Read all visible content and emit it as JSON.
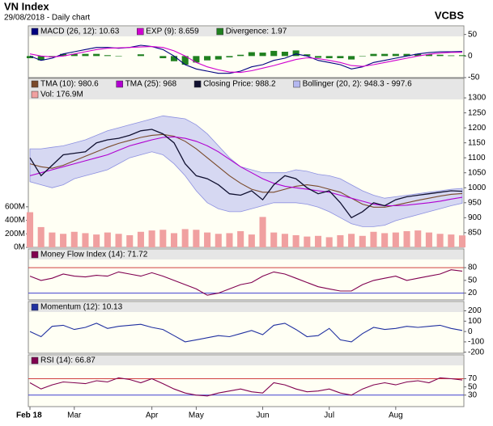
{
  "header": {
    "title": "VN Index",
    "subtitle": "29/08/2018 - Daily chart",
    "brand": "VCBS"
  },
  "chart_data": [
    {
      "type": "macd",
      "ylim": [
        -50,
        70
      ],
      "yticks": [
        50,
        0,
        -50
      ],
      "series": [
        {
          "name": "MACD (26, 12): 10.63",
          "color": "#000080",
          "style": "line",
          "values": [
            0,
            -10,
            -5,
            5,
            10,
            15,
            20,
            20,
            18,
            20,
            25,
            22,
            15,
            0,
            -20,
            -30,
            -35,
            -40,
            -40,
            -35,
            -25,
            -20,
            -10,
            -5,
            5,
            0,
            -10,
            -15,
            -20,
            -30,
            -25,
            -15,
            -10,
            -5,
            0,
            5,
            8,
            10,
            10,
            10.63
          ]
        },
        {
          "name": "EXP (9): 8.659",
          "color": "#d000d0",
          "style": "line",
          "values": [
            5,
            0,
            -2,
            0,
            5,
            10,
            15,
            18,
            19,
            20,
            21,
            22,
            20,
            12,
            0,
            -15,
            -25,
            -32,
            -37,
            -38,
            -34,
            -28,
            -22,
            -15,
            -8,
            -4,
            -6,
            -10,
            -15,
            -22,
            -24,
            -20,
            -15,
            -10,
            -5,
            0,
            4,
            7,
            8.5,
            8.659
          ]
        },
        {
          "name": "Divergence: 1.97",
          "color": "#208020",
          "style": "bar",
          "values": [
            -5,
            -10,
            -3,
            5,
            5,
            5,
            5,
            2,
            -1,
            0,
            4,
            0,
            -5,
            -12,
            -20,
            -15,
            -10,
            -8,
            -3,
            3,
            9,
            8,
            12,
            10,
            13,
            4,
            -4,
            -5,
            -5,
            -8,
            -1,
            5,
            5,
            5,
            5,
            5,
            4,
            3,
            1.5,
            1.97
          ]
        }
      ]
    },
    {
      "type": "price",
      "ylim": [
        801,
        1365
      ],
      "yticks": [
        1300,
        1250,
        1200,
        1150,
        1100,
        1050,
        1000,
        950,
        900,
        850
      ],
      "y2lim": [
        0,
        2500
      ],
      "y2ticks": [
        {
          "value": 600,
          "label": "600M"
        },
        {
          "value": 400,
          "label": "400M"
        },
        {
          "value": 200,
          "label": "200M"
        },
        {
          "value": 0,
          "label": "0M"
        }
      ],
      "series": [
        {
          "name": "TMA (10): 980.6",
          "color": "#7a4a2a",
          "style": "line",
          "values": [
            1080,
            1070,
            1065,
            1075,
            1090,
            1105,
            1120,
            1135,
            1148,
            1158,
            1168,
            1175,
            1178,
            1172,
            1155,
            1130,
            1100,
            1070,
            1040,
            1015,
            995,
            985,
            985,
            995,
            1005,
            1010,
            1005,
            995,
            985,
            965,
            945,
            935,
            935,
            942,
            950,
            958,
            965,
            972,
            978,
            980.6
          ]
        },
        {
          "name": "TMA (25): 968",
          "color": "#b000d0",
          "style": "line",
          "values": [
            1040,
            1050,
            1060,
            1070,
            1080,
            1090,
            1100,
            1110,
            1125,
            1140,
            1150,
            1160,
            1168,
            1170,
            1165,
            1155,
            1140,
            1120,
            1095,
            1070,
            1050,
            1030,
            1015,
            1005,
            1000,
            995,
            990,
            985,
            975,
            965,
            955,
            945,
            940,
            940,
            942,
            946,
            950,
            955,
            962,
            968
          ]
        },
        {
          "name": "Closing Price: 988.2",
          "color": "#101030",
          "style": "line",
          "values": [
            1100,
            1040,
            1075,
            1110,
            1115,
            1120,
            1150,
            1160,
            1165,
            1175,
            1190,
            1195,
            1180,
            1150,
            1080,
            1040,
            1030,
            1010,
            980,
            975,
            990,
            960,
            1010,
            1040,
            1030,
            1000,
            980,
            990,
            950,
            900,
            920,
            950,
            940,
            960,
            970,
            975,
            980,
            985,
            990,
            988.2
          ]
        },
        {
          "name": "Bollinger (20, 2): 948.3 - 997.6",
          "color": "#b4b8f0",
          "style": "band",
          "upper": [
            1130,
            1130,
            1135,
            1140,
            1150,
            1160,
            1175,
            1190,
            1200,
            1210,
            1220,
            1230,
            1240,
            1235,
            1230,
            1210,
            1180,
            1140,
            1100,
            1070,
            1060,
            1050,
            1050,
            1050,
            1060,
            1055,
            1045,
            1040,
            1030,
            1010,
            990,
            975,
            965,
            970,
            975,
            980,
            985,
            990,
            995,
            997.6
          ],
          "lower": [
            1020,
            1010,
            1000,
            1010,
            1030,
            1040,
            1050,
            1060,
            1080,
            1100,
            1110,
            1120,
            1110,
            1080,
            1040,
            990,
            950,
            930,
            920,
            920,
            930,
            940,
            950,
            950,
            950,
            945,
            935,
            920,
            900,
            880,
            870,
            870,
            875,
            890,
            900,
            910,
            920,
            930,
            940,
            948.3
          ]
        },
        {
          "name": "Vol: 176.9M",
          "color": "#f0a0a0",
          "style": "bar",
          "axis": "y2",
          "values": [
            520,
            300,
            220,
            200,
            230,
            210,
            190,
            220,
            200,
            180,
            230,
            250,
            260,
            210,
            270,
            260,
            220,
            200,
            210,
            240,
            190,
            450,
            220,
            200,
            180,
            160,
            170,
            150,
            180,
            200,
            170,
            230,
            210,
            220,
            240,
            250,
            220,
            200,
            190,
            176.9
          ]
        }
      ]
    },
    {
      "type": "line",
      "ylim": [
        4,
        124
      ],
      "yticks": [
        80,
        50,
        20
      ],
      "grid_colors": [
        "#d04040",
        "none",
        "#4040d0"
      ],
      "series": [
        {
          "name": "Money Flow Index (14): 71.72",
          "color": "#800050",
          "style": "line",
          "values": [
            60,
            50,
            55,
            65,
            60,
            58,
            62,
            60,
            70,
            65,
            60,
            68,
            60,
            50,
            40,
            30,
            15,
            20,
            30,
            40,
            45,
            60,
            70,
            65,
            55,
            45,
            35,
            30,
            25,
            25,
            40,
            50,
            55,
            60,
            50,
            55,
            60,
            65,
            75,
            71.72
          ]
        }
      ]
    },
    {
      "type": "line",
      "ylim": [
        -210,
        290
      ],
      "yticks": [
        200,
        100,
        0,
        -100,
        -200
      ],
      "series": [
        {
          "name": "Momentum (12): 10.13",
          "color": "#2030a0",
          "style": "line",
          "values": [
            0,
            -50,
            50,
            60,
            20,
            40,
            80,
            30,
            50,
            60,
            70,
            40,
            20,
            -40,
            -100,
            -80,
            -60,
            -40,
            -50,
            -20,
            10,
            -30,
            60,
            80,
            20,
            -50,
            -40,
            30,
            -80,
            -100,
            -20,
            40,
            20,
            30,
            50,
            40,
            50,
            60,
            30,
            10.13
          ]
        }
      ]
    },
    {
      "type": "line",
      "ylim": [
        2,
        128
      ],
      "yticks": [
        70,
        50,
        30
      ],
      "grid_colors": [
        "#d04040",
        "none",
        "#4040d0"
      ],
      "categories": [
        "Feb 18",
        null,
        null,
        null,
        "Mar",
        null,
        null,
        null,
        null,
        null,
        null,
        "Apr",
        null,
        null,
        null,
        "May",
        null,
        null,
        null,
        null,
        null,
        "Jun",
        null,
        null,
        null,
        null,
        null,
        "Jul",
        null,
        null,
        null,
        null,
        null,
        "Aug",
        null,
        null,
        null,
        null,
        null,
        null
      ],
      "series": [
        {
          "name": "RSI (14): 66.87",
          "color": "#800050",
          "style": "line",
          "values": [
            60,
            45,
            55,
            62,
            60,
            58,
            65,
            62,
            72,
            68,
            60,
            70,
            58,
            45,
            35,
            30,
            28,
            35,
            40,
            45,
            38,
            35,
            60,
            55,
            45,
            38,
            40,
            45,
            35,
            30,
            45,
            55,
            60,
            55,
            62,
            65,
            60,
            72,
            70,
            66.87
          ]
        }
      ]
    }
  ]
}
